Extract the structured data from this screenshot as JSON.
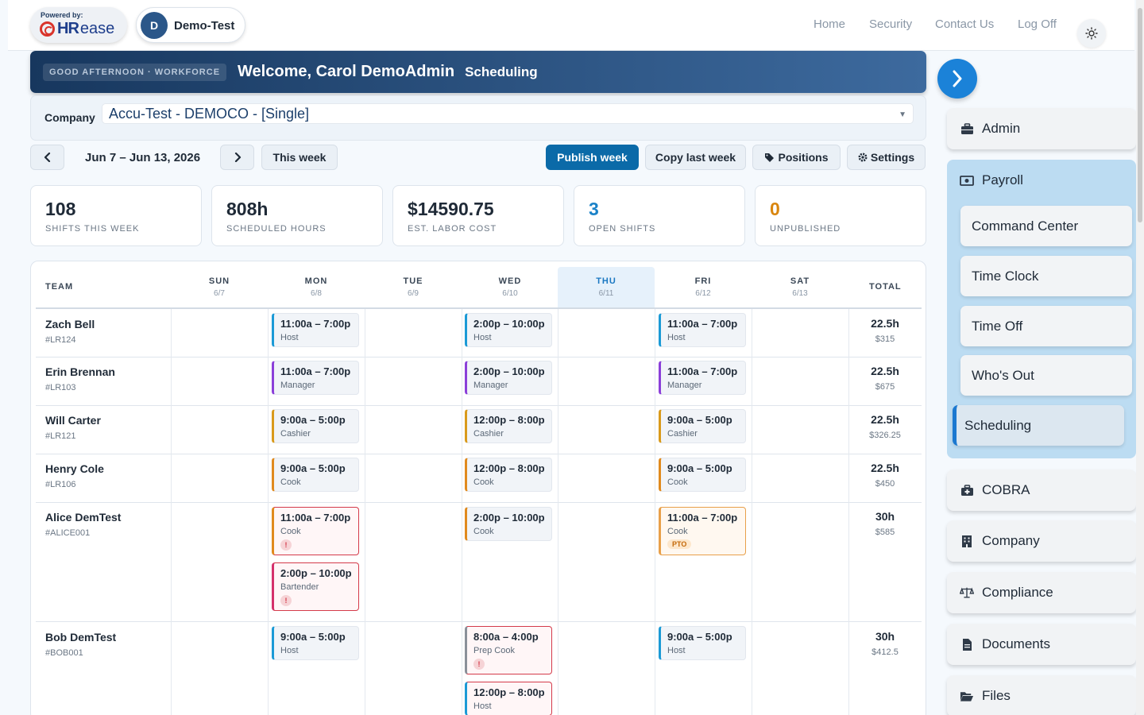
{
  "header": {
    "powered_by": "Powered by:",
    "brand_hr": "HR",
    "brand_ease": "ease",
    "avatar_initial": "D",
    "account_name": "Demo-Test",
    "nav": [
      "Home",
      "Security",
      "Contact Us",
      "Log Off"
    ]
  },
  "banner": {
    "greeting": "GOOD AFTERNOON · WORKFORCE",
    "welcome": "Welcome, Carol DemoAdmin",
    "section": "Scheduling"
  },
  "company": {
    "label": "Company",
    "selected": "Accu-Test - DEMOCO - [Single]"
  },
  "toolbar": {
    "date_range": "Jun 7 – Jun 13, 2026",
    "this_week": "This week",
    "publish": "Publish week",
    "copy": "Copy last week",
    "positions": "Positions",
    "settings": "Settings"
  },
  "stats": [
    {
      "value": "108",
      "label": "SHIFTS THIS WEEK",
      "color": "#1f2a37"
    },
    {
      "value": "808h",
      "label": "SCHEDULED HOURS",
      "color": "#1f2a37"
    },
    {
      "value": "$14590.75",
      "label": "EST. LABOR COST",
      "color": "#1f2a37"
    },
    {
      "value": "3",
      "label": "OPEN SHIFTS",
      "color": "#1b82c8"
    },
    {
      "value": "0",
      "label": "UNPUBLISHED",
      "color": "#d9860f"
    }
  ],
  "schedule": {
    "team_header": "TEAM",
    "total_header": "TOTAL",
    "days": [
      {
        "day": "SUN",
        "date": "6/7"
      },
      {
        "day": "MON",
        "date": "6/8"
      },
      {
        "day": "TUE",
        "date": "6/9"
      },
      {
        "day": "WED",
        "date": "6/10"
      },
      {
        "day": "THU",
        "date": "6/11"
      },
      {
        "day": "FRI",
        "date": "6/12"
      },
      {
        "day": "SAT",
        "date": "6/13"
      }
    ],
    "employees": [
      {
        "name": "Zach Bell",
        "id": "#LR124",
        "hours": "22.5h",
        "cost": "$315"
      },
      {
        "name": "Erin Brennan",
        "id": "#LR103",
        "hours": "22.5h",
        "cost": "$675"
      },
      {
        "name": "Will Carter",
        "id": "#LR121",
        "hours": "22.5h",
        "cost": "$326.25"
      },
      {
        "name": "Henry Cole",
        "id": "#LR106",
        "hours": "22.5h",
        "cost": "$450"
      },
      {
        "name": "Alice DemTest",
        "id": "#ALICE001",
        "hours": "30h",
        "cost": "$585"
      },
      {
        "name": "Bob DemTest",
        "id": "#BOB001",
        "hours": "30h",
        "cost": "$412.5"
      }
    ],
    "shifts": [
      {
        "time": "11:00a – 7:00p",
        "role": "Host",
        "color": "#1b9ad6"
      },
      {
        "time": "2:00p – 10:00p",
        "role": "Host",
        "color": "#1b9ad6"
      },
      {
        "time": "11:00a – 7:00p",
        "role": "Host",
        "color": "#1b9ad6"
      },
      {
        "time": "11:00a – 7:00p",
        "role": "Manager",
        "color": "#8b3fd9"
      },
      {
        "time": "2:00p – 10:00p",
        "role": "Manager",
        "color": "#8b3fd9"
      },
      {
        "time": "11:00a – 7:00p",
        "role": "Manager",
        "color": "#8b3fd9"
      },
      {
        "time": "9:00a – 5:00p",
        "role": "Cashier",
        "color": "#d99a1b"
      },
      {
        "time": "12:00p – 8:00p",
        "role": "Cashier",
        "color": "#d99a1b"
      },
      {
        "time": "9:00a – 5:00p",
        "role": "Cashier",
        "color": "#d99a1b"
      },
      {
        "time": "9:00a – 5:00p",
        "role": "Cook",
        "color": "#e08a1e"
      },
      {
        "time": "12:00p – 8:00p",
        "role": "Cook",
        "color": "#e08a1e"
      },
      {
        "time": "9:00a – 5:00p",
        "role": "Cook",
        "color": "#e08a1e"
      },
      {
        "time": "11:00a – 7:00p",
        "role": "Cook",
        "color": "#e08a1e"
      },
      {
        "time": "2:00p – 10:00p",
        "role": "Bartender",
        "color": "#d4306b"
      },
      {
        "time": "2:00p – 10:00p",
        "role": "Cook",
        "color": "#e08a1e"
      },
      {
        "time": "11:00a – 7:00p",
        "role": "Cook",
        "color": "#e08a1e",
        "badge": "PTO"
      },
      {
        "time": "9:00a – 5:00p",
        "role": "Host",
        "color": "#1b9ad6"
      },
      {
        "time": "8:00a – 4:00p",
        "role": "Prep Cook",
        "color": "#8a9099"
      },
      {
        "time": "12:00p – 8:00p",
        "role": "Host",
        "color": "#1b9ad6"
      },
      {
        "time": "9:00a – 5:00p",
        "role": "Host",
        "color": "#1b9ad6"
      }
    ],
    "warning_mark": "!"
  },
  "sidebar": {
    "admin": "Admin",
    "payroll": "Payroll",
    "payroll_items": [
      "Command Center",
      "Time Clock",
      "Time Off",
      "Who's Out",
      "Scheduling"
    ],
    "others": [
      "COBRA",
      "Company",
      "Compliance",
      "Documents",
      "Files"
    ]
  }
}
